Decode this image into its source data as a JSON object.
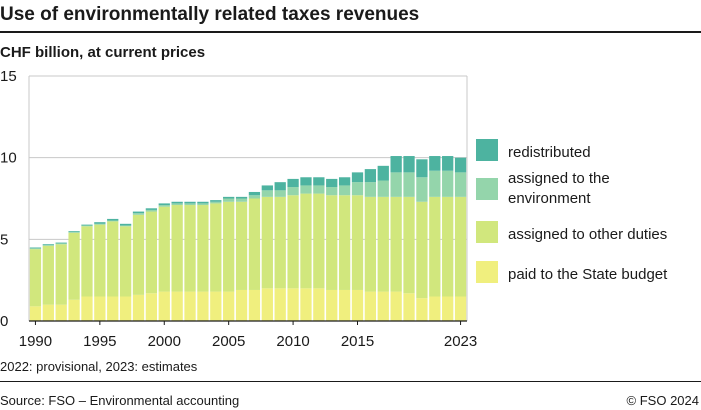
{
  "title": "Use of environmentally related taxes revenues",
  "subtitle": "CHF billion, at current prices",
  "note": "2022: provisional, 2023: estimates",
  "source": "Source: FSO – Environmental accounting",
  "copyright": "© FSO 2024",
  "chart_data": {
    "type": "bar",
    "stacked": true,
    "categories": [
      1990,
      1991,
      1992,
      1993,
      1994,
      1995,
      1996,
      1997,
      1998,
      1999,
      2000,
      2001,
      2002,
      2003,
      2004,
      2005,
      2006,
      2007,
      2008,
      2009,
      2010,
      2011,
      2012,
      2013,
      2014,
      2015,
      2016,
      2017,
      2018,
      2019,
      2020,
      2021,
      2022,
      2023
    ],
    "x_tick_labels": [
      "1990",
      "1995",
      "2000",
      "2005",
      "2010",
      "2015",
      "2023"
    ],
    "x_tick_years": [
      1990,
      1995,
      2000,
      2005,
      2010,
      2015,
      2023
    ],
    "y_ticks": [
      0,
      5,
      10,
      15
    ],
    "ylim": [
      0,
      15
    ],
    "grid": "horizontal",
    "legend_position": "right",
    "series": [
      {
        "name": "paid to the State budget",
        "color": "#f0ef7e",
        "values": [
          0.9,
          1.0,
          1.0,
          1.3,
          1.5,
          1.5,
          1.5,
          1.5,
          1.6,
          1.7,
          1.8,
          1.8,
          1.8,
          1.8,
          1.8,
          1.8,
          1.9,
          1.9,
          2.0,
          2.0,
          2.0,
          2.0,
          2.0,
          1.9,
          1.9,
          1.9,
          1.8,
          1.8,
          1.8,
          1.7,
          1.4,
          1.5,
          1.5,
          1.5
        ]
      },
      {
        "name": "assigned to other duties",
        "color": "#d1e77d",
        "values": [
          3.5,
          3.6,
          3.7,
          4.1,
          4.3,
          4.4,
          4.6,
          4.3,
          4.9,
          5.0,
          5.2,
          5.3,
          5.3,
          5.3,
          5.4,
          5.5,
          5.4,
          5.6,
          5.6,
          5.6,
          5.7,
          5.8,
          5.8,
          5.8,
          5.8,
          5.8,
          5.8,
          5.8,
          5.8,
          5.9,
          5.9,
          6.1,
          6.1,
          6.1
        ]
      },
      {
        "name": "assigned to the environment",
        "color": "#94d5ab",
        "values": [
          0.05,
          0.05,
          0.05,
          0.05,
          0.05,
          0.05,
          0.05,
          0.05,
          0.1,
          0.1,
          0.1,
          0.1,
          0.1,
          0.1,
          0.1,
          0.2,
          0.2,
          0.2,
          0.4,
          0.4,
          0.5,
          0.5,
          0.5,
          0.5,
          0.6,
          0.8,
          0.9,
          1.0,
          1.5,
          1.5,
          1.5,
          1.6,
          1.6,
          1.5
        ]
      },
      {
        "name": "redistributed",
        "color": "#4db3a0",
        "values": [
          0.05,
          0.05,
          0.05,
          0.05,
          0.05,
          0.1,
          0.1,
          0.1,
          0.1,
          0.1,
          0.1,
          0.1,
          0.1,
          0.1,
          0.1,
          0.1,
          0.1,
          0.2,
          0.3,
          0.5,
          0.5,
          0.5,
          0.5,
          0.5,
          0.5,
          0.6,
          0.8,
          0.9,
          1.0,
          1.0,
          1.1,
          0.9,
          0.9,
          0.9
        ]
      }
    ],
    "legend_order": [
      "redistributed",
      "assigned to the environment",
      "assigned to other duties",
      "paid to the State budget"
    ]
  }
}
